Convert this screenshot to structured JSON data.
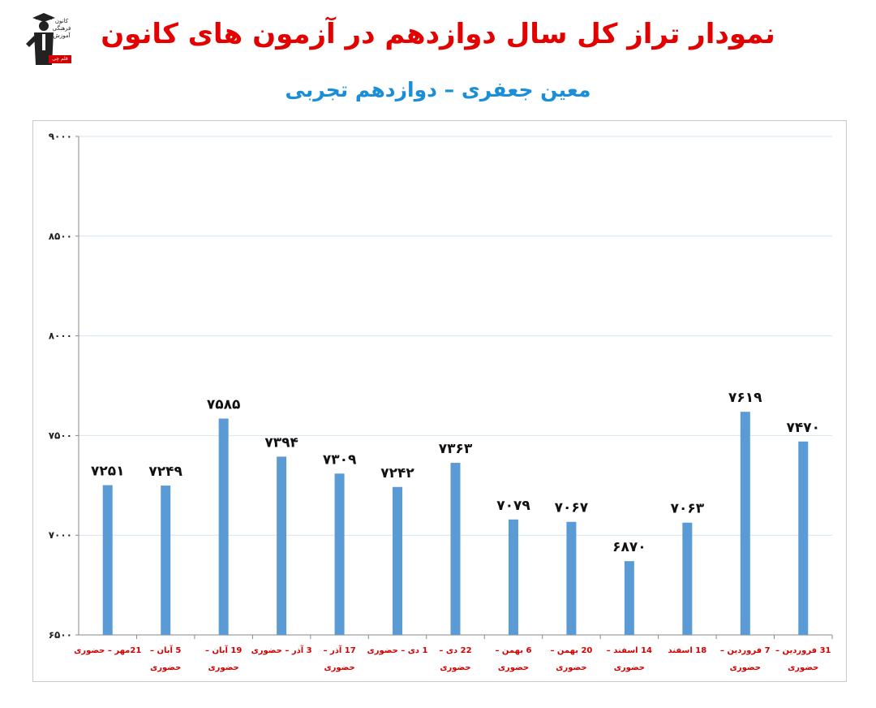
{
  "header": {
    "title": "نمودار تراز کل سال دوازدهم در آزمون های کانون",
    "subtitle": "معین جعفری – دوازدهم تجربی"
  },
  "logo": {
    "text_lines": [
      "کانون",
      "فرهنگی",
      "آموزش"
    ],
    "badge": "قلم چی"
  },
  "colors": {
    "bar": "#5b9bd5",
    "title": "#e30000",
    "subtitle": "#1a8fd8",
    "x_label": "#d40000",
    "grid": "#d6e4f0"
  },
  "chart_data": {
    "type": "bar",
    "categories": [
      [
        "21مهر – حضوری"
      ],
      [
        "5 آبان –",
        "حضوری"
      ],
      [
        "19 آبان –",
        "حضوری"
      ],
      [
        "3 آذر – حضوری"
      ],
      [
        "17 آذر –",
        "حضوری"
      ],
      [
        "1 دی – حضوری"
      ],
      [
        "22 دی –",
        "حضوری"
      ],
      [
        "6 بهمن –",
        "حضوری"
      ],
      [
        "20 بهمن –",
        "حضوری"
      ],
      [
        "14 اسفند –",
        "حضوری"
      ],
      [
        "18 اسفند"
      ],
      [
        "7 فروردین –",
        "حضوری"
      ],
      [
        "31 فروردین –",
        "حضوری"
      ]
    ],
    "values": [
      7251,
      7249,
      7585,
      7394,
      7309,
      7242,
      7363,
      7079,
      7067,
      6870,
      7063,
      7619,
      7470
    ],
    "data_labels": [
      "۷۲۵۱",
      "۷۲۴۹",
      "۷۵۸۵",
      "۷۳۹۴",
      "۷۳۰۹",
      "۷۲۴۲",
      "۷۳۶۳",
      "۷۰۷۹",
      "۷۰۶۷",
      "۶۸۷۰",
      "۷۰۶۳",
      "۷۶۱۹",
      "۷۴۷۰"
    ],
    "ylim": [
      6500,
      9000
    ],
    "yticks": [
      6500,
      7000,
      7500,
      8000,
      8500,
      9000
    ],
    "ytick_labels": [
      "۶۵۰۰",
      "۷۰۰۰",
      "۷۵۰۰",
      "۸۰۰۰",
      "۸۵۰۰",
      "۹۰۰۰"
    ],
    "grid": true,
    "legend": "none"
  }
}
